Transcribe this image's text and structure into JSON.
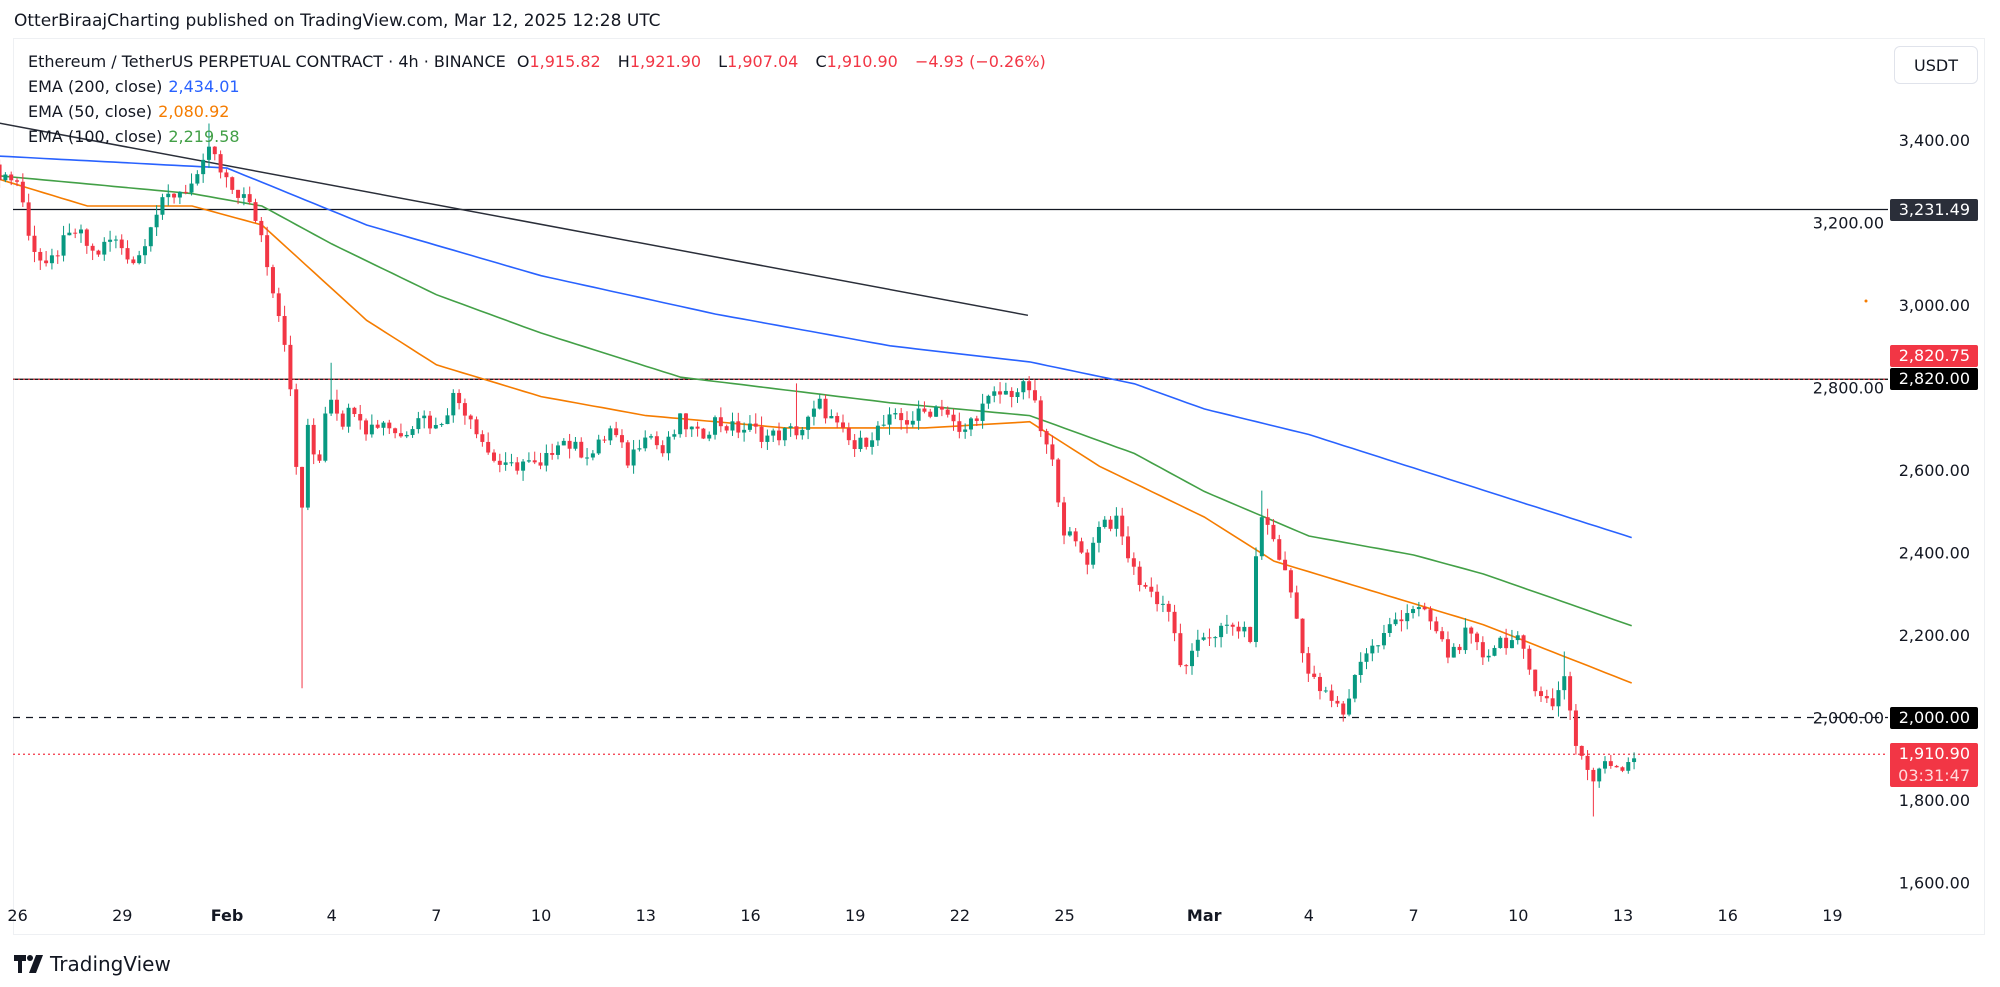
{
  "header": {
    "author_line": "OtterBiraajCharting published on TradingView.com, Mar 12, 2025 12:28 UTC",
    "symbol": "Ethereum / TetherUS PERPETUAL CONTRACT · 4h · BINANCE",
    "o_label": "O",
    "o": "1,915.82",
    "h_label": "H",
    "h": "1,921.90",
    "l_label": "L",
    "l": "1,907.04",
    "c_label": "C",
    "c": "1,910.90",
    "change": "−4.93 (−0.26%)"
  },
  "indicators": [
    {
      "label": "EMA (200, close)",
      "value": "2,434.01",
      "color": "#2962ff"
    },
    {
      "label": "EMA (50, close)",
      "value": "2,080.92",
      "color": "#f57c00"
    },
    {
      "label": "EMA (100, close)",
      "value": "2,219.58",
      "color": "#43a047"
    }
  ],
  "currency": "USDT",
  "branding": "TradingView",
  "chart_data": {
    "type": "candlestick",
    "title": "Ethereum / TetherUS PERPETUAL CONTRACT · 4h · BINANCE",
    "x_unit": "days since Feb 1 2025",
    "candle_interval_days": 0.16667,
    "ylim": [
      1560,
      3520
    ],
    "xlim": [
      -6.85,
      49.9
    ],
    "y_ticks": [
      "3,400.00",
      "3,200.00",
      "3,000.00",
      "2,800.00",
      "2,600.00",
      "2,400.00",
      "2,200.00",
      "2,000.00",
      "1,800.00",
      "1,600.00"
    ],
    "y_tick_values": [
      3400,
      3200,
      3000,
      2800,
      2600,
      2400,
      2200,
      2000,
      1800,
      1600
    ],
    "x_ticks": [
      {
        "label": "26",
        "day": -6,
        "bold": false
      },
      {
        "label": "29",
        "day": -3,
        "bold": false
      },
      {
        "label": "Feb",
        "day": 0,
        "bold": true
      },
      {
        "label": "4",
        "day": 3,
        "bold": false
      },
      {
        "label": "7",
        "day": 6,
        "bold": false
      },
      {
        "label": "10",
        "day": 9,
        "bold": false
      },
      {
        "label": "13",
        "day": 12,
        "bold": false
      },
      {
        "label": "16",
        "day": 15,
        "bold": false
      },
      {
        "label": "19",
        "day": 18,
        "bold": false
      },
      {
        "label": "22",
        "day": 21,
        "bold": false
      },
      {
        "label": "25",
        "day": 24,
        "bold": false
      },
      {
        "label": "Mar",
        "day": 28,
        "bold": true
      },
      {
        "label": "4",
        "day": 31,
        "bold": false
      },
      {
        "label": "7",
        "day": 34,
        "bold": false
      },
      {
        "label": "10",
        "day": 37,
        "bold": false
      },
      {
        "label": "13",
        "day": 40,
        "bold": false
      },
      {
        "label": "16",
        "day": 43,
        "bold": false
      },
      {
        "label": "19",
        "day": 46,
        "bold": false
      }
    ],
    "price_path": [
      [
        -7,
        3330
      ],
      [
        -6.5,
        3320
      ],
      [
        -6,
        3300
      ],
      [
        -5.6,
        3150
      ],
      [
        -5.2,
        3080
      ],
      [
        -4.8,
        3140
      ],
      [
        -4.3,
        3180
      ],
      [
        -3.8,
        3120
      ],
      [
        -3.3,
        3160
      ],
      [
        -3,
        3140
      ],
      [
        -2.6,
        3100
      ],
      [
        -2.2,
        3200
      ],
      [
        -1.7,
        3260
      ],
      [
        -1.3,
        3280
      ],
      [
        -0.8,
        3300
      ],
      [
        -0.5,
        3390
      ],
      [
        -0.2,
        3320
      ],
      [
        0,
        3290
      ],
      [
        0.5,
        3260
      ],
      [
        0.9,
        3200
      ],
      [
        1.3,
        3050
      ],
      [
        1.7,
        2900
      ],
      [
        1.95,
        2650
      ],
      [
        2.1,
        2450
      ],
      [
        2.3,
        2700
      ],
      [
        2.6,
        2600
      ],
      [
        2.9,
        2800
      ],
      [
        3.3,
        2720
      ],
      [
        3.7,
        2760
      ],
      [
        4,
        2700
      ],
      [
        4.5,
        2720
      ],
      [
        5,
        2680
      ],
      [
        5.5,
        2740
      ],
      [
        6,
        2700
      ],
      [
        6.5,
        2780
      ],
      [
        7,
        2730
      ],
      [
        7.5,
        2640
      ],
      [
        8,
        2600
      ],
      [
        8.5,
        2620
      ],
      [
        9,
        2600
      ],
      [
        9.5,
        2680
      ],
      [
        10,
        2650
      ],
      [
        10.5,
        2640
      ],
      [
        11,
        2700
      ],
      [
        11.5,
        2620
      ],
      [
        12,
        2700
      ],
      [
        12.5,
        2640
      ],
      [
        13,
        2720
      ],
      [
        13.5,
        2680
      ],
      [
        14,
        2720
      ],
      [
        14.5,
        2700
      ],
      [
        15,
        2700
      ],
      [
        15.5,
        2680
      ],
      [
        16,
        2690
      ],
      [
        16.5,
        2700
      ],
      [
        17,
        2760
      ],
      [
        17.5,
        2700
      ],
      [
        18,
        2650
      ],
      [
        18.5,
        2690
      ],
      [
        19,
        2720
      ],
      [
        19.5,
        2720
      ],
      [
        20,
        2740
      ],
      [
        20.5,
        2760
      ],
      [
        21,
        2680
      ],
      [
        21.5,
        2740
      ],
      [
        22,
        2780
      ],
      [
        22.5,
        2790
      ],
      [
        23,
        2800
      ],
      [
        23.3,
        2700
      ],
      [
        23.7,
        2600
      ],
      [
        24,
        2450
      ],
      [
        24.3,
        2420
      ],
      [
        24.7,
        2380
      ],
      [
        25,
        2480
      ],
      [
        25.5,
        2470
      ],
      [
        26,
        2350
      ],
      [
        26.5,
        2300
      ],
      [
        27,
        2260
      ],
      [
        27.3,
        2120
      ],
      [
        27.7,
        2150
      ],
      [
        28,
        2200
      ],
      [
        28.5,
        2210
      ],
      [
        29,
        2220
      ],
      [
        29.3,
        2180
      ],
      [
        29.6,
        2500
      ],
      [
        30,
        2430
      ],
      [
        30.5,
        2300
      ],
      [
        31,
        2100
      ],
      [
        31.5,
        2050
      ],
      [
        32,
        2010
      ],
      [
        32.5,
        2150
      ],
      [
        33,
        2180
      ],
      [
        33.5,
        2240
      ],
      [
        34,
        2270
      ],
      [
        34.5,
        2230
      ],
      [
        35,
        2150
      ],
      [
        35.5,
        2200
      ],
      [
        36,
        2150
      ],
      [
        36.5,
        2190
      ],
      [
        37,
        2180
      ],
      [
        37.5,
        2080
      ],
      [
        38,
        2020
      ],
      [
        38.3,
        2120
      ],
      [
        38.6,
        1950
      ],
      [
        39,
        1870
      ],
      [
        39.2,
        1840
      ],
      [
        39.5,
        1900
      ],
      [
        39.9,
        1880
      ],
      [
        40.33,
        1911
      ]
    ],
    "wick_extremes": [
      [
        -0.5,
        3440
      ],
      [
        2.1,
        2071
      ],
      [
        3.0,
        2860
      ],
      [
        16.4,
        2810
      ],
      [
        29.6,
        2550
      ],
      [
        32.0,
        1990
      ],
      [
        38.3,
        2160
      ],
      [
        39.2,
        1760
      ]
    ],
    "series": [
      {
        "name": "EMA (200, close)",
        "color": "#2962ff",
        "points": [
          [
            -7,
            3363
          ],
          [
            0,
            3332
          ],
          [
            4,
            3194
          ],
          [
            9,
            3071
          ],
          [
            14,
            2978
          ],
          [
            19,
            2901
          ],
          [
            23,
            2862
          ],
          [
            26,
            2809
          ],
          [
            28,
            2748
          ],
          [
            31,
            2686
          ],
          [
            35,
            2578
          ],
          [
            40.33,
            2434
          ]
        ]
      },
      {
        "name": "EMA (100, close)",
        "color": "#43a047",
        "points": [
          [
            -7,
            3317
          ],
          [
            -1,
            3270
          ],
          [
            1,
            3240
          ],
          [
            3,
            3148
          ],
          [
            6,
            3025
          ],
          [
            9,
            2932
          ],
          [
            13,
            2825
          ],
          [
            16,
            2794
          ],
          [
            19,
            2763
          ],
          [
            23,
            2732
          ],
          [
            26,
            2640
          ],
          [
            28,
            2548
          ],
          [
            31,
            2440
          ],
          [
            34,
            2394
          ],
          [
            36,
            2348
          ],
          [
            40.33,
            2220
          ]
        ]
      },
      {
        "name": "EMA (50, close)",
        "color": "#f57c00",
        "points": [
          [
            -7,
            3317
          ],
          [
            -4,
            3240
          ],
          [
            -1,
            3240
          ],
          [
            1,
            3194
          ],
          [
            2,
            3117
          ],
          [
            4,
            2963
          ],
          [
            6,
            2855
          ],
          [
            9,
            2778
          ],
          [
            12,
            2732
          ],
          [
            16,
            2702
          ],
          [
            20,
            2702
          ],
          [
            23,
            2717
          ],
          [
            25,
            2609
          ],
          [
            28,
            2486
          ],
          [
            30,
            2379
          ],
          [
            33,
            2302
          ],
          [
            36,
            2225
          ],
          [
            40.33,
            2081
          ]
        ]
      }
    ],
    "trendline": [
      [
        -6.85,
        3446
      ],
      [
        22.95,
        2975
      ]
    ],
    "horizontal_lines": [
      {
        "price": 3231.49,
        "label": "3,231.49",
        "style": "solid",
        "color": "#131722",
        "tag_bg": "#2a2e39"
      },
      {
        "price": 2820.0,
        "label": "2,820.00",
        "style": "solid",
        "color": "#000000",
        "tag_bg": "#000000"
      },
      {
        "price": 2000.0,
        "label": "2,000.00",
        "style": "dashed",
        "color": "#131722",
        "tag_bg": "#000000"
      },
      {
        "price": 1910.9,
        "label": "1,910.90",
        "style": "dotted",
        "color": "#f23645",
        "tag_bg": "#f23645",
        "countdown": "03:31:47"
      }
    ],
    "extra_tag": {
      "price": 2820.75,
      "label": "2,820.75",
      "tag_bg": "#f23645"
    },
    "colors": {
      "up": "#089981",
      "down": "#f23645"
    }
  }
}
